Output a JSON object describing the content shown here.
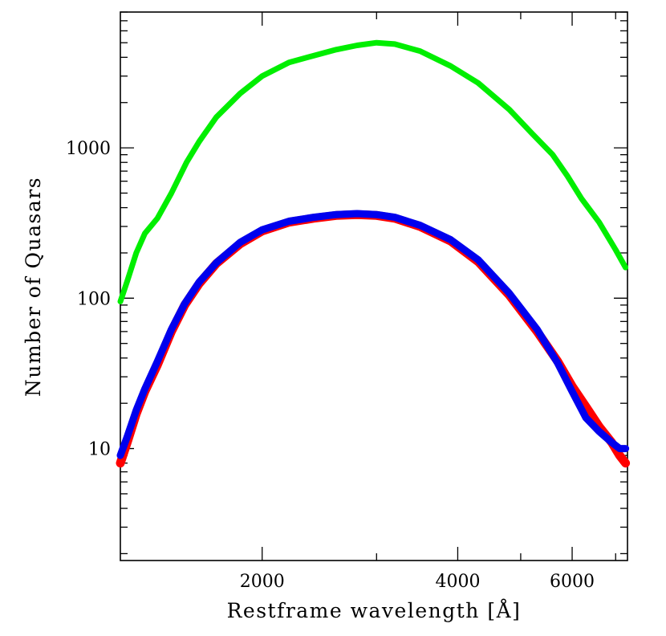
{
  "chart_data": {
    "type": "line",
    "title": "",
    "xlabel": "Restframe wavelength [Å]",
    "ylabel": "Number of Quasars",
    "xscale": "log",
    "yscale": "log",
    "xlim": [
      1210,
      7300
    ],
    "ylim": [
      1.8,
      8000
    ],
    "xticks": [
      {
        "value": 2000,
        "label": "2000"
      },
      {
        "value": 4000,
        "label": "4000"
      },
      {
        "value": 6000,
        "label": "6000"
      }
    ],
    "yticks": [
      {
        "value": 10,
        "label": "10"
      },
      {
        "value": 100,
        "label": "100"
      },
      {
        "value": 1000,
        "label": "1000"
      }
    ],
    "grid": false,
    "legend": "none",
    "series": [
      {
        "color": "#00ee00",
        "width": 7,
        "x": [
          1210,
          1240,
          1280,
          1320,
          1380,
          1450,
          1530,
          1600,
          1700,
          1850,
          2000,
          2200,
          2400,
          2600,
          2800,
          3000,
          3200,
          3500,
          3900,
          4300,
          4800,
          5200,
          5600,
          5900,
          6200,
          6600,
          7000,
          7250
        ],
        "y": [
          95,
          130,
          200,
          270,
          340,
          500,
          800,
          1100,
          1600,
          2300,
          3000,
          3700,
          4100,
          4500,
          4800,
          5000,
          4900,
          4400,
          3500,
          2700,
          1800,
          1250,
          900,
          650,
          460,
          320,
          210,
          160
        ]
      },
      {
        "color": "#ff0000",
        "width": 11,
        "x": [
          1210,
          1240,
          1280,
          1320,
          1380,
          1450,
          1520,
          1600,
          1700,
          1850,
          2000,
          2200,
          2400,
          2600,
          2800,
          3000,
          3200,
          3500,
          3900,
          4300,
          4800,
          5300,
          5700,
          6000,
          6300,
          6600,
          6900,
          7100,
          7250
        ],
        "y": [
          8,
          11,
          17,
          24,
          36,
          60,
          90,
          125,
          170,
          230,
          280,
          320,
          340,
          355,
          360,
          355,
          340,
          300,
          240,
          175,
          105,
          60,
          38,
          26,
          19,
          14,
          11,
          9,
          8
        ]
      },
      {
        "color": "#0000ee",
        "width": 9,
        "x": [
          1210,
          1240,
          1280,
          1320,
          1380,
          1450,
          1520,
          1600,
          1700,
          1850,
          2000,
          2200,
          2400,
          2600,
          2800,
          3000,
          3200,
          3500,
          3900,
          4300,
          4800,
          5300,
          5700,
          6000,
          6300,
          6600,
          6900,
          7100,
          7250
        ],
        "y": [
          9,
          12,
          18,
          25,
          38,
          62,
          92,
          128,
          172,
          235,
          285,
          325,
          345,
          360,
          365,
          360,
          345,
          305,
          245,
          180,
          108,
          62,
          37,
          24,
          16,
          13,
          11,
          10,
          10
        ]
      }
    ]
  }
}
